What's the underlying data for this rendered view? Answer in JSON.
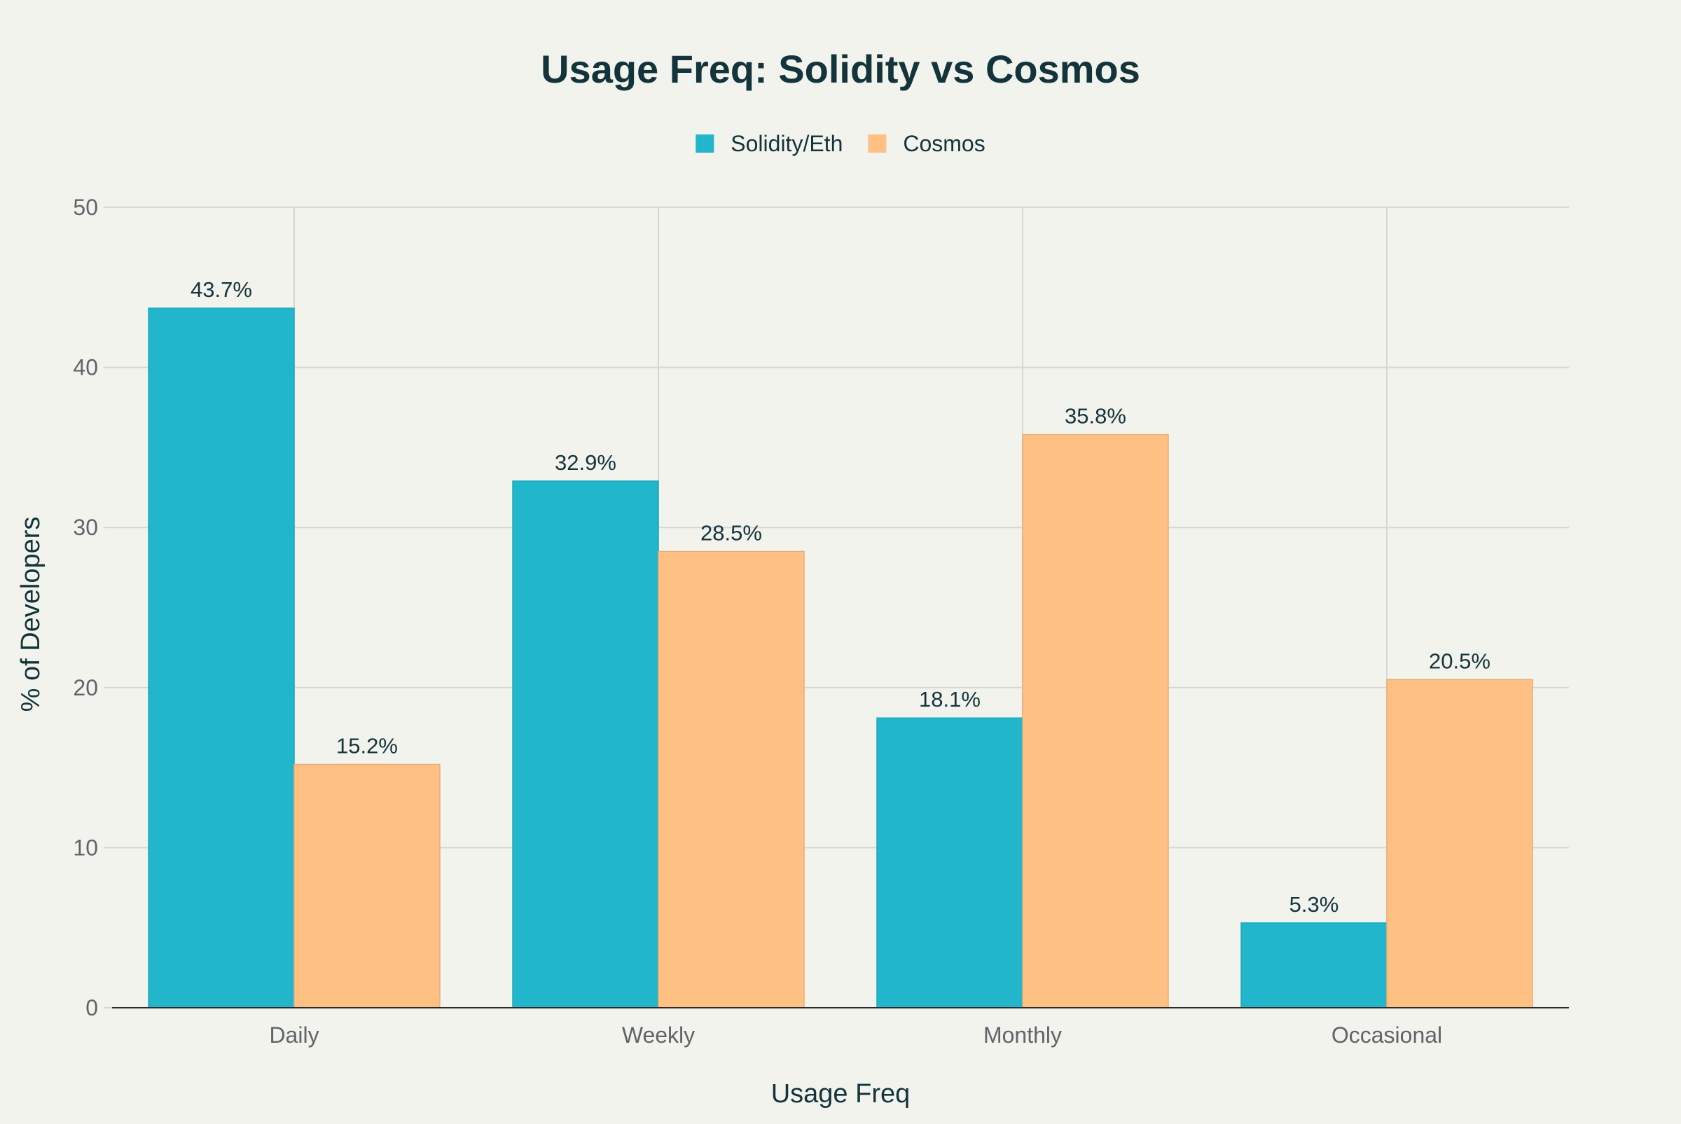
{
  "chart_data": {
    "type": "bar",
    "title": "Usage Freq: Solidity vs Cosmos",
    "xlabel": "Usage Freq",
    "ylabel": "% of Developers",
    "categories": [
      "Daily",
      "Weekly",
      "Monthly",
      "Occasional"
    ],
    "series": [
      {
        "name": "Solidity/Eth",
        "color": "#21b6cb",
        "values": [
          43.7,
          32.9,
          18.1,
          5.3
        ],
        "labels": [
          "43.7%",
          "32.9%",
          "18.1%",
          "5.3%"
        ]
      },
      {
        "name": "Cosmos",
        "color": "#ffc084",
        "values": [
          15.2,
          28.5,
          35.8,
          20.5
        ],
        "labels": [
          "15.2%",
          "28.5%",
          "35.8%",
          "20.5%"
        ]
      }
    ],
    "ylim": [
      0,
      50
    ],
    "yticks": [
      0,
      10,
      20,
      30,
      40,
      50
    ],
    "grid": true,
    "legend_position": "top-center"
  }
}
